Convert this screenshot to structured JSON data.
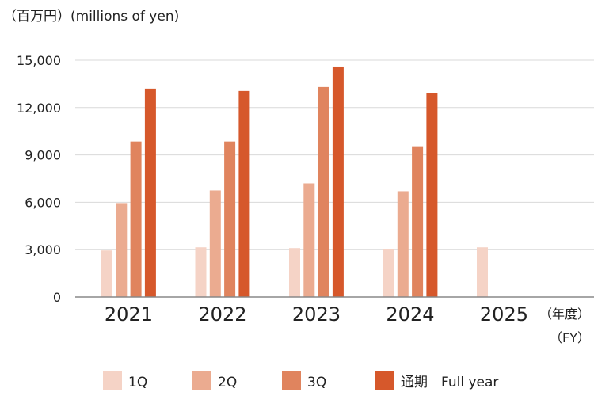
{
  "chart_data": {
    "type": "bar",
    "unit_label": "（百万円）(millions of yen)",
    "categories": [
      "2021",
      "2022",
      "2023",
      "2024",
      "2025"
    ],
    "x_suffix_ja": "（年度）",
    "x_suffix_en": "（FY）",
    "ylim": [
      0,
      15000
    ],
    "yticks": [
      "0",
      "3,000",
      "6,000",
      "9,000",
      "12,000",
      "15,000"
    ],
    "ytick_values": [
      0,
      3000,
      6000,
      9000,
      12000,
      15000
    ],
    "grid": true,
    "legend_position": "bottom",
    "series": [
      {
        "name": "1Q",
        "color": "#f5d3c6",
        "values": [
          2950,
          3150,
          3100,
          3050,
          3150
        ]
      },
      {
        "name": "2Q",
        "color": "#ebab90",
        "values": [
          5950,
          6750,
          7200,
          6700,
          null
        ]
      },
      {
        "name": "3Q",
        "color": "#e0845e",
        "values": [
          9850,
          9850,
          13300,
          9550,
          null
        ]
      },
      {
        "name": "通期　Full year",
        "color": "#d6582b",
        "values": [
          13200,
          13050,
          14600,
          12900,
          null
        ]
      }
    ]
  }
}
